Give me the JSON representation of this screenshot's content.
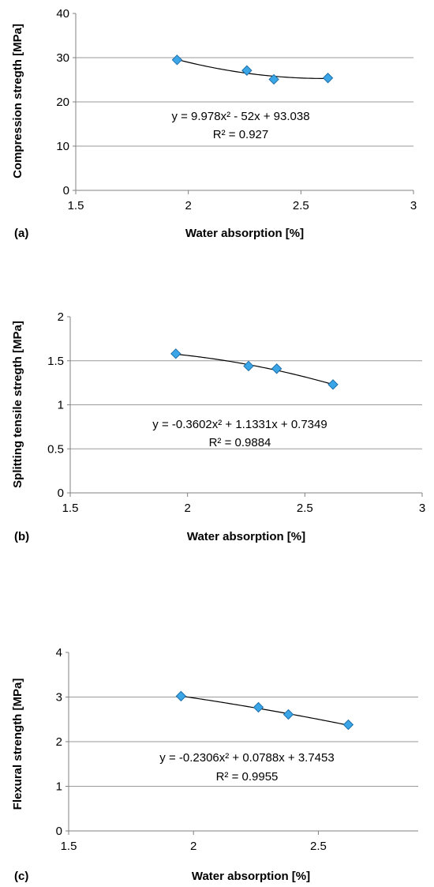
{
  "chart_data": [
    {
      "type": "scatter",
      "panel_label": "(a)",
      "xlabel": "Water absorption [%]",
      "ylabel": "Compression stregth [MPa]",
      "xlim": [
        1.5,
        3
      ],
      "ylim": [
        0,
        40
      ],
      "x_ticks": [
        "1.5",
        "2",
        "2.5",
        "3"
      ],
      "y_ticks": [
        "0",
        "10",
        "20",
        "30",
        "40"
      ],
      "grid": "horizontal",
      "marker_color": "#3aa6e8",
      "series": [
        {
          "x": [
            1.95,
            2.26,
            2.38,
            2.62
          ],
          "y": [
            29.5,
            27.1,
            25.1,
            25.4
          ]
        }
      ],
      "trendline": {
        "type": "polynomial",
        "coefficients": [
          9.978,
          -52,
          93.038
        ]
      },
      "equation": "y = 9.978x² - 52x + 93.038",
      "r_squared": "R² = 0.927"
    },
    {
      "type": "scatter",
      "panel_label": "(b)",
      "xlabel": "Water absorption [%]",
      "ylabel": "Splitting tensile stregth [MPa]",
      "xlim": [
        1.5,
        3
      ],
      "ylim": [
        0,
        2
      ],
      "x_ticks": [
        "1.5",
        "2",
        "2.5",
        "3"
      ],
      "y_ticks": [
        "0",
        "0.5",
        "1",
        "1.5",
        "2"
      ],
      "grid": "horizontal",
      "marker_color": "#3aa6e8",
      "series": [
        {
          "x": [
            1.95,
            2.26,
            2.38,
            2.62
          ],
          "y": [
            1.58,
            1.44,
            1.41,
            1.23
          ]
        }
      ],
      "trendline": {
        "type": "polynomial",
        "coefficients": [
          -0.3602,
          1.1331,
          0.7349
        ]
      },
      "equation": "y = -0.3602x² + 1.1331x + 0.7349",
      "r_squared": "R² = 0.9884"
    },
    {
      "type": "scatter",
      "panel_label": "(c)",
      "xlabel": "Water absorption [%]",
      "ylabel": "Flexural strength [MPa]",
      "xlim": [
        1.5,
        2.9
      ],
      "ylim": [
        0,
        4
      ],
      "x_ticks": [
        "1.5",
        "2",
        "2.5"
      ],
      "y_ticks": [
        "0",
        "1",
        "2",
        "3",
        "4"
      ],
      "grid": "horizontal",
      "marker_color": "#3aa6e8",
      "series": [
        {
          "x": [
            1.95,
            2.26,
            2.38,
            2.62
          ],
          "y": [
            3.02,
            2.77,
            2.61,
            2.38
          ]
        }
      ],
      "trendline": {
        "type": "polynomial",
        "coefficients": [
          -0.2306,
          0.0788,
          3.7453
        ]
      },
      "equation": "y = -0.2306x² + 0.0788x + 3.7453",
      "r_squared": "R² = 0.9955"
    }
  ]
}
